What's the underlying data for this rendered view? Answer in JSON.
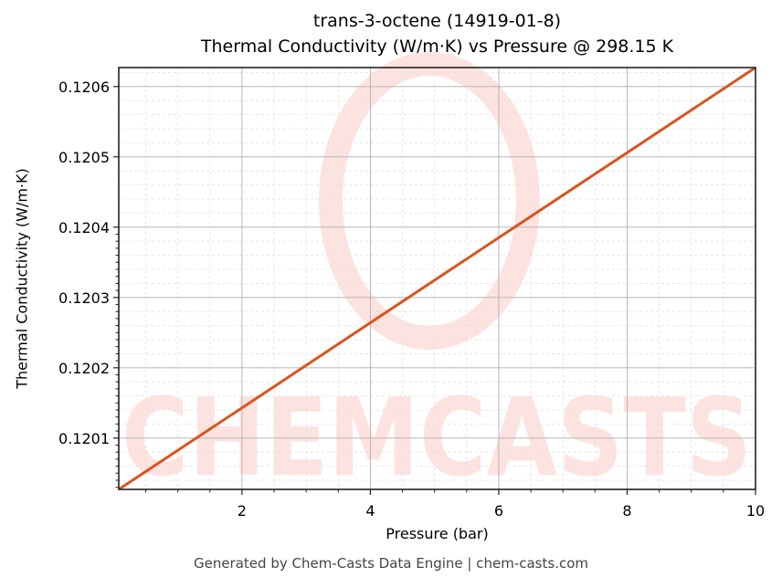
{
  "chart_data": {
    "type": "line",
    "title": "trans-3-octene (14919-01-8)",
    "subtitle": "Thermal Conductivity (W/m·K) vs Pressure @ 298.15 K",
    "xlabel": "Pressure (bar)",
    "ylabel": "Thermal Conductivity (W/m·K)",
    "xlim": [
      0.08,
      10
    ],
    "ylim": [
      0.120027,
      0.120627
    ],
    "xticks": [
      2,
      4,
      6,
      8,
      10
    ],
    "xtick_labels": [
      "2",
      "4",
      "6",
      "8",
      "10"
    ],
    "yticks": [
      0.1201,
      0.1202,
      0.1203,
      0.1204,
      0.1205,
      0.1206
    ],
    "ytick_labels": [
      "0.1201",
      "0.1202",
      "0.1203",
      "0.1204",
      "0.1205",
      "0.1206"
    ],
    "grid": true,
    "legend": null,
    "series": [
      {
        "name": "Thermal Conductivity",
        "color": "#d9541e",
        "x": [
          0.08,
          2,
          4,
          6,
          8,
          10
        ],
        "y": [
          0.120027,
          0.120143,
          0.120264,
          0.120385,
          0.120506,
          0.120627
        ]
      }
    ]
  },
  "header": {
    "title": "trans-3-octene (14919-01-8)",
    "subtitle": "Thermal Conductivity (W/m·K) vs Pressure @ 298.15 K"
  },
  "watermark": {
    "text": "CHEMCASTS",
    "color": "#fde3e0"
  },
  "footer": {
    "text": "Generated by Chem-Casts Data Engine | chem-casts.com"
  }
}
